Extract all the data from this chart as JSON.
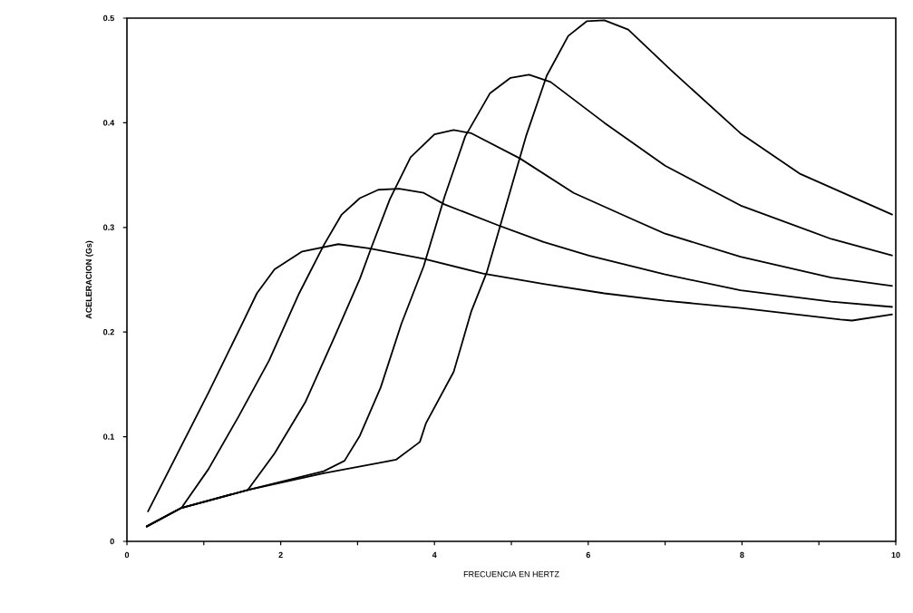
{
  "chart_data": {
    "type": "line",
    "xlabel": "FRECUENCIA EN HERTZ",
    "ylabel": "ACELERACION (Gs)",
    "xlim": [
      0,
      10
    ],
    "ylim": [
      0,
      0.5
    ],
    "xticks": [
      0,
      {
        "value": 1,
        "label": null
      },
      2,
      {
        "value": 3,
        "label": null
      },
      4,
      {
        "value": 5,
        "label": null
      },
      6,
      {
        "value": 7,
        "label": null
      },
      8,
      {
        "value": 9,
        "label": null
      },
      10
    ],
    "yticks": [
      0,
      0.1,
      0.2,
      0.3,
      0.4,
      0.5
    ],
    "grid": false,
    "marker": "none",
    "line_style": "solid",
    "series": [
      {
        "color": "#000000",
        "x": [
          0.27,
          1.06,
          1.5,
          1.69,
          1.92,
          2.28,
          2.75,
          3.15,
          3.86,
          4.63,
          5.42,
          6.21,
          7.0,
          7.98,
          9.28,
          9.43,
          9.96
        ],
        "values": [
          0.028,
          0.142,
          0.208,
          0.237,
          0.26,
          0.277,
          0.284,
          0.28,
          0.27,
          0.256,
          0.246,
          0.237,
          0.23,
          0.223,
          0.212,
          0.211,
          0.217
        ]
      },
      {
        "color": "#000000",
        "x": [
          0.25,
          0.71,
          1.06,
          1.45,
          1.85,
          2.24,
          2.56,
          2.79,
          3.03,
          3.27,
          3.54,
          3.86,
          4.13,
          4.83,
          5.42,
          6.01,
          7.0,
          7.98,
          9.16,
          9.96
        ],
        "values": [
          0.014,
          0.032,
          0.069,
          0.119,
          0.173,
          0.237,
          0.283,
          0.312,
          0.328,
          0.336,
          0.337,
          0.333,
          0.322,
          0.302,
          0.286,
          0.273,
          0.255,
          0.24,
          0.229,
          0.224
        ]
      },
      {
        "color": "#000000",
        "x": [
          0.25,
          0.71,
          1.57,
          1.92,
          2.32,
          2.71,
          3.03,
          3.18,
          3.42,
          3.69,
          4.0,
          4.25,
          4.48,
          5.11,
          5.81,
          6.6,
          7.0,
          7.98,
          9.16,
          9.96
        ],
        "values": [
          0.014,
          0.032,
          0.049,
          0.084,
          0.133,
          0.197,
          0.251,
          0.281,
          0.327,
          0.367,
          0.389,
          0.393,
          0.39,
          0.366,
          0.333,
          0.307,
          0.294,
          0.272,
          0.252,
          0.244
        ]
      },
      {
        "color": "#000000",
        "x": [
          0.25,
          0.71,
          1.57,
          2.56,
          2.83,
          3.03,
          3.3,
          3.57,
          3.86,
          4.13,
          4.4,
          4.72,
          4.99,
          5.23,
          5.51,
          6.21,
          7.0,
          7.98,
          9.16,
          9.96
        ],
        "values": [
          0.014,
          0.032,
          0.049,
          0.067,
          0.077,
          0.101,
          0.147,
          0.208,
          0.263,
          0.329,
          0.387,
          0.428,
          0.443,
          0.446,
          0.439,
          0.4,
          0.359,
          0.321,
          0.289,
          0.273
        ]
      },
      {
        "color": "#000000",
        "x": [
          0.25,
          0.71,
          1.57,
          2.56,
          3.5,
          3.81,
          3.89,
          4.25,
          4.48,
          4.68,
          4.92,
          5.19,
          5.46,
          5.74,
          5.98,
          6.21,
          6.52,
          7.08,
          7.98,
          8.76,
          9.96
        ],
        "values": [
          0.014,
          0.032,
          0.049,
          0.065,
          0.078,
          0.095,
          0.113,
          0.162,
          0.22,
          0.257,
          0.318,
          0.387,
          0.445,
          0.483,
          0.497,
          0.498,
          0.489,
          0.45,
          0.39,
          0.351,
          0.312
        ]
      }
    ]
  }
}
